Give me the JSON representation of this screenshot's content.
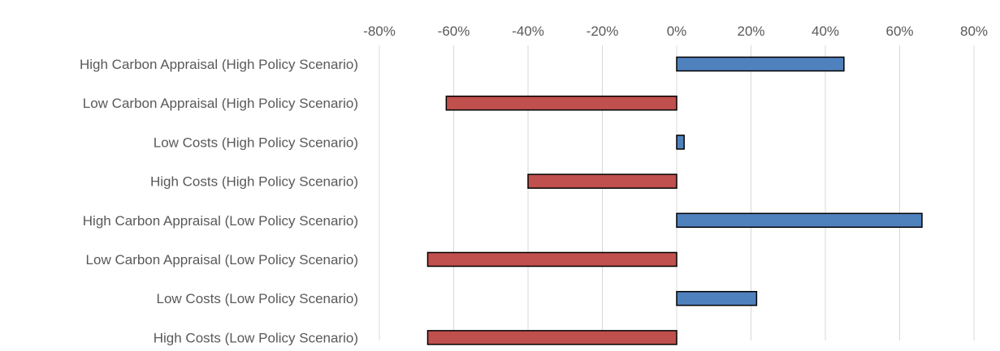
{
  "chart_data": {
    "type": "bar",
    "orientation": "horizontal",
    "title": "",
    "xlabel": "",
    "ylabel": "",
    "xlim": [
      -80,
      80
    ],
    "x_ticks": [
      -80,
      -60,
      -40,
      -20,
      0,
      20,
      40,
      60,
      80
    ],
    "x_tick_labels": [
      "-80%",
      "-60%",
      "-40%",
      "-20%",
      "0%",
      "20%",
      "40%",
      "60%",
      "80%"
    ],
    "x_axis_position": "top",
    "grid": true,
    "legend": "none",
    "categories": [
      "High Carbon Appraisal (High Policy Scenario)",
      "Low Carbon Appraisal (High Policy Scenario)",
      "Low Costs (High Policy Scenario)",
      "High Costs (High Policy Scenario)",
      "High Carbon Appraisal (Low Policy Scenario)",
      "Low Carbon Appraisal (Low Policy Scenario)",
      "Low Costs (Low Policy Scenario)",
      "High Costs (Low Policy Scenario)"
    ],
    "values": [
      45,
      -62,
      2,
      -40,
      66,
      -67,
      21.5,
      -67
    ],
    "colors": {
      "positive": "#4f81bd",
      "negative": "#c0504d",
      "outline": "#000000",
      "grid": "#d9d9d9",
      "text": "#595959"
    }
  }
}
